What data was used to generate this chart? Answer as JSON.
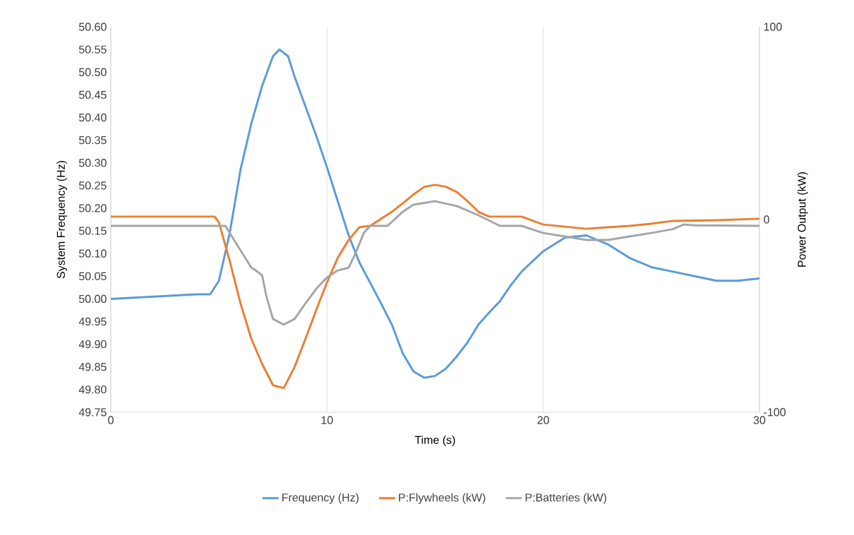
{
  "chart_data": {
    "type": "line",
    "xlabel": "Time (s)",
    "ylabel": "System Frequency (Hz)",
    "y2label": "Power Output (kW)",
    "xlim": [
      0,
      30
    ],
    "xticks": [
      0,
      10,
      20,
      30
    ],
    "ylim": [
      49.75,
      50.6
    ],
    "yticks": [
      {
        "value": 49.75,
        "label": "49.75"
      },
      {
        "value": 49.8,
        "label": "49.80"
      },
      {
        "value": 49.85,
        "label": "49.85"
      },
      {
        "value": 49.9,
        "label": "49.90"
      },
      {
        "value": 49.95,
        "label": "49.95"
      },
      {
        "value": 50.0,
        "label": "50.00"
      },
      {
        "value": 50.05,
        "label": "50.05"
      },
      {
        "value": 50.1,
        "label": "50.10"
      },
      {
        "value": 50.15,
        "label": "50.15"
      },
      {
        "value": 50.2,
        "label": "50.20"
      },
      {
        "value": 50.25,
        "label": "50.25"
      },
      {
        "value": 50.3,
        "label": "50.30"
      },
      {
        "value": 50.35,
        "label": "50.35"
      },
      {
        "value": 50.4,
        "label": "50.40"
      },
      {
        "value": 50.45,
        "label": "50.45"
      },
      {
        "value": 50.5,
        "label": "50.50"
      },
      {
        "value": 50.55,
        "label": "50.55"
      },
      {
        "value": 50.6,
        "label": "50.60"
      }
    ],
    "y2lim": [
      -100,
      100
    ],
    "y2ticks": [
      -100,
      0,
      100
    ],
    "grid": "x",
    "legend": "bottom",
    "marker": "none",
    "line_style": "solid",
    "series": [
      {
        "name": "Frequency (Hz)",
        "color": "#5b9bd5",
        "x": [
          0,
          2,
          4,
          4.6,
          5,
          5.5,
          6,
          6.5,
          7,
          7.5,
          7.8,
          8.2,
          8.5,
          9,
          9.5,
          10,
          10.5,
          11,
          11.5,
          12,
          12.5,
          13,
          13.5,
          14,
          14.5,
          15,
          15.5,
          16,
          16.5,
          17,
          17.5,
          18,
          18.5,
          19,
          20,
          21,
          22,
          23,
          24,
          25,
          26,
          27,
          28,
          29,
          30
        ],
        "values": [
          50.0,
          50.005,
          50.01,
          50.01,
          50.04,
          50.145,
          50.285,
          50.387,
          50.47,
          50.535,
          50.55,
          50.535,
          50.49,
          50.425,
          50.36,
          50.29,
          50.215,
          50.14,
          50.08,
          50.035,
          49.99,
          49.943,
          49.88,
          49.84,
          49.826,
          49.83,
          49.846,
          49.873,
          49.904,
          49.943,
          49.97,
          49.995,
          50.03,
          50.06,
          50.105,
          50.135,
          50.14,
          50.12,
          50.09,
          50.07,
          50.06,
          50.05,
          50.04,
          50.04,
          50.045
        ]
      },
      {
        "name": "P:Flywheels (kW)",
        "color": "#ed7d31",
        "axis": "y2",
        "x": [
          0,
          4.8,
          5,
          5.5,
          6,
          6.5,
          7,
          7.5,
          8,
          8.5,
          9,
          9.5,
          10,
          10.5,
          11,
          11.5,
          12,
          12.5,
          13,
          13.5,
          14,
          14.5,
          15,
          15.5,
          16,
          16.5,
          17,
          17.5,
          19,
          20,
          21,
          22,
          23,
          24,
          25,
          26,
          28,
          30
        ],
        "values": [
          1.5,
          1.5,
          -1.5,
          -21.6,
          -43.6,
          -62,
          -75,
          -86,
          -87.5,
          -76.5,
          -62,
          -47,
          -32.6,
          -19.8,
          -10.6,
          -4,
          -3.3,
          0.4,
          4,
          8.4,
          13,
          17,
          18,
          17,
          14.3,
          9.5,
          4,
          1.5,
          1.5,
          -2.6,
          -3.7,
          -4.8,
          -4,
          -3.3,
          -2.2,
          -0.7,
          -0.4,
          0.4
        ]
      },
      {
        "name": "P:Batteries (kW)",
        "color": "#a5a5a5",
        "axis": "y2",
        "x": [
          0,
          5.3,
          5.7,
          6,
          6.5,
          6.7,
          7,
          7.2,
          7.5,
          8,
          8.5,
          9,
          9.5,
          10,
          10.5,
          11,
          11.3,
          11.7,
          12,
          12.8,
          13.5,
          14,
          15,
          16,
          17,
          18,
          19,
          20,
          21,
          22,
          23,
          24,
          25,
          26,
          26.5,
          27,
          30
        ],
        "values": [
          -3.3,
          -3.3,
          -10.6,
          -16,
          -25,
          -26.4,
          -29,
          -40,
          -51.6,
          -54.6,
          -51.6,
          -43.6,
          -36,
          -30,
          -26.4,
          -25,
          -18,
          -7,
          -3.3,
          -3.3,
          4,
          7.7,
          9.5,
          7,
          2.2,
          -3.3,
          -3.3,
          -7,
          -8.8,
          -10.6,
          -10.6,
          -8.8,
          -7,
          -5,
          -2.6,
          -3,
          -3.3
        ]
      }
    ]
  }
}
